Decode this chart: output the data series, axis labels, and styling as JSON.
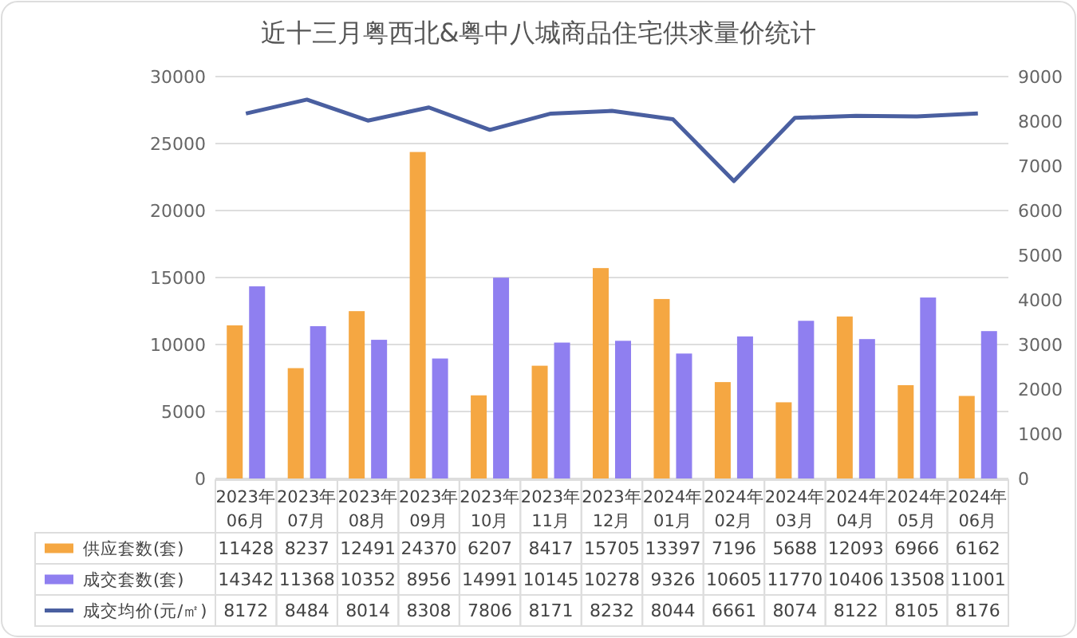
{
  "chart_data": {
    "type": "bar",
    "title": "近十三月粤西北&粤中八城商品住宅供求量价统计",
    "categories": [
      "2023年\n06月",
      "2023年\n07月",
      "2023年\n08月",
      "2023年\n09月",
      "2023年\n10月",
      "2023年\n11月",
      "2023年\n12月",
      "2024年\n01月",
      "2024年\n02月",
      "2024年\n03月",
      "2024年\n04月",
      "2024年\n05月",
      "2024年\n06月"
    ],
    "series": [
      {
        "name": "供应套数(套)",
        "color": "#f5a742",
        "values": [
          11428,
          8237,
          12491,
          24370,
          6207,
          8417,
          15705,
          13397,
          7196,
          5688,
          12093,
          6966,
          6162
        ]
      },
      {
        "name": "成交套数(套)",
        "color": "#8f7ff0",
        "values": [
          14342,
          11368,
          10352,
          8956,
          14991,
          10145,
          10278,
          9326,
          10605,
          11770,
          10406,
          13508,
          11001
        ]
      },
      {
        "name": "成交均价(元/㎡)",
        "type": "line",
        "axis": "y2",
        "color": "#4a5fa0",
        "values": [
          8172,
          8484,
          8014,
          8308,
          7806,
          8171,
          8232,
          8044,
          6661,
          8074,
          8122,
          8105,
          8176
        ]
      }
    ],
    "ylim": [
      0,
      30000
    ],
    "yticks": [
      0,
      5000,
      10000,
      15000,
      20000,
      25000,
      30000
    ],
    "y2lim": [
      0,
      9000
    ],
    "y2ticks": [
      0,
      1000,
      2000,
      3000,
      4000,
      5000,
      6000,
      7000,
      8000,
      9000
    ],
    "grid": "y",
    "legend": "bottom",
    "data_labels": true,
    "marker": "none",
    "line_style": "solid"
  }
}
